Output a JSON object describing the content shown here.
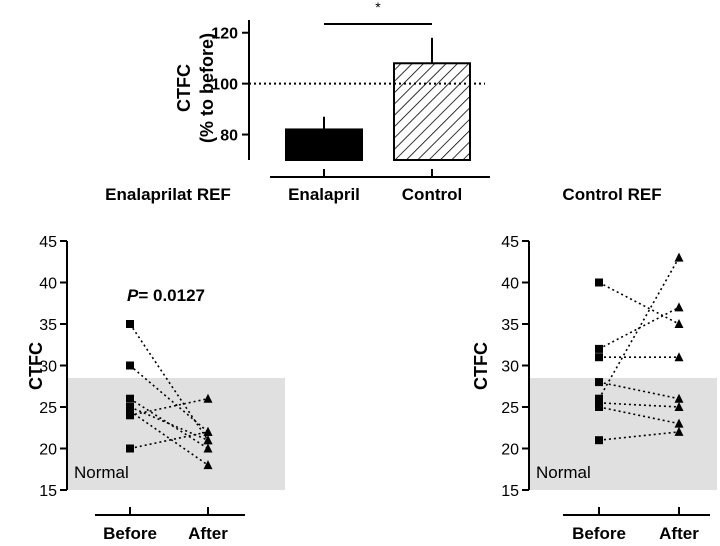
{
  "chart_data": [
    {
      "type": "bar",
      "ylabel": "CTFC",
      "ylabel_sub": "(% to before)",
      "yticks": [
        80,
        100,
        120
      ],
      "ylim": [
        70,
        125
      ],
      "categories": [
        "Enalapril",
        "Control"
      ],
      "values": [
        82,
        108
      ],
      "errors": [
        5,
        10
      ],
      "bar_fills": [
        "solid-black",
        "hatched"
      ],
      "reference_line": 100,
      "significance": "*"
    },
    {
      "type": "scatter",
      "title": "Enalaprilat REF",
      "ylabel": "CTFC",
      "categories": [
        "Before",
        "After"
      ],
      "yticks": [
        15,
        20,
        25,
        30,
        35,
        40,
        45
      ],
      "ylim": [
        15,
        45
      ],
      "normal_band": [
        15,
        28.5
      ],
      "band_label": "Normal",
      "annotation_p": "P",
      "annotation_value": "= 0.0127",
      "pairs": [
        [
          35,
          21
        ],
        [
          30,
          22
        ],
        [
          26,
          20
        ],
        [
          25,
          21
        ],
        [
          24.5,
          18
        ],
        [
          24,
          26
        ],
        [
          20,
          22
        ]
      ]
    },
    {
      "type": "scatter",
      "title": "Control REF",
      "ylabel": "CTFC",
      "categories": [
        "Before",
        "After"
      ],
      "yticks": [
        15,
        20,
        25,
        30,
        35,
        40,
        45
      ],
      "ylim": [
        15,
        45
      ],
      "normal_band": [
        15,
        28.5
      ],
      "band_label": "Normal",
      "pairs": [
        [
          40,
          35
        ],
        [
          32,
          37
        ],
        [
          31,
          31
        ],
        [
          28,
          26
        ],
        [
          26,
          43
        ],
        [
          25.5,
          25
        ],
        [
          25,
          23
        ],
        [
          21,
          22
        ]
      ]
    }
  ]
}
